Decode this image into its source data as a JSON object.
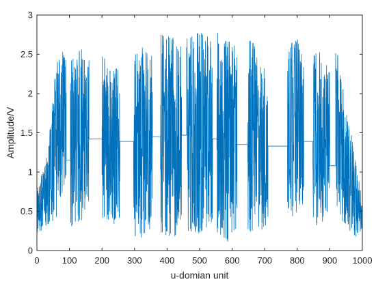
{
  "chart_data": {
    "type": "line",
    "title": "",
    "xlabel": "u-domian unit",
    "ylabel": "Amplitude/V",
    "xlim": [
      0,
      1000
    ],
    "ylim": [
      0,
      3
    ],
    "xticks": [
      0,
      100,
      200,
      300,
      400,
      500,
      600,
      700,
      800,
      900,
      1000
    ],
    "yticks": [
      0,
      0.5,
      1,
      1.5,
      2,
      2.5,
      3
    ],
    "xtick_labels": [
      "0",
      "100",
      "200",
      "300",
      "400",
      "500",
      "600",
      "700",
      "800",
      "900",
      "1000"
    ],
    "ytick_labels": [
      "0",
      "0.5",
      "1",
      "1.5",
      "2",
      "2.5",
      "3"
    ],
    "grid": false,
    "line_color": "#0072BD",
    "series": [
      {
        "segments": [
          {
            "type": "noise",
            "x_range": [
              0,
              90
            ],
            "envelope": [
              [
                0,
                0.2,
                0.8
              ],
              [
                30,
                0.3,
                1.2
              ],
              [
                60,
                0.4,
                2.4
              ],
              [
                90,
                0.9,
                2.6
              ]
            ]
          },
          {
            "type": "flat",
            "x_range": [
              90,
              103
            ],
            "y": 1.15
          },
          {
            "type": "noise",
            "x_range": [
              103,
              160
            ],
            "envelope": [
              [
                103,
                0.3,
                2.5
              ],
              [
                130,
                0.3,
                2.6
              ],
              [
                160,
                0.6,
                2.5
              ]
            ]
          },
          {
            "type": "flat",
            "x_range": [
              160,
              200
            ],
            "y": 1.42
          },
          {
            "type": "noise",
            "x_range": [
              200,
              255
            ],
            "envelope": [
              [
                200,
                0.4,
                2.5
              ],
              [
                230,
                0.3,
                2.3
              ],
              [
                255,
                0.4,
                2.4
              ]
            ]
          },
          {
            "type": "flat",
            "x_range": [
              255,
              297
            ],
            "y": 1.39
          },
          {
            "type": "noise",
            "x_range": [
              297,
              355
            ],
            "envelope": [
              [
                297,
                0.2,
                2.5
              ],
              [
                325,
                0.1,
                2.6
              ],
              [
                355,
                0.3,
                2.5
              ]
            ]
          },
          {
            "type": "flat",
            "x_range": [
              355,
              380
            ],
            "y": 1.45
          },
          {
            "type": "noise",
            "x_range": [
              380,
              445
            ],
            "envelope": [
              [
                380,
                0.2,
                2.8
              ],
              [
                410,
                0.1,
                2.8
              ],
              [
                445,
                0.3,
                2.6
              ]
            ]
          },
          {
            "type": "flat",
            "x_range": [
              445,
              460
            ],
            "y": 1.47
          },
          {
            "type": "noise",
            "x_range": [
              460,
              540
            ],
            "envelope": [
              [
                460,
                0.2,
                2.7
              ],
              [
                500,
                0.2,
                2.8
              ],
              [
                540,
                0.3,
                2.7
              ]
            ]
          },
          {
            "type": "flat",
            "x_range": [
              540,
              553
            ],
            "y": 1.42
          },
          {
            "type": "noise",
            "x_range": [
              553,
              615
            ],
            "envelope": [
              [
                553,
                0.2,
                2.8
              ],
              [
                585,
                0.1,
                2.7
              ],
              [
                615,
                0.3,
                2.6
              ]
            ]
          },
          {
            "type": "flat",
            "x_range": [
              615,
              648
            ],
            "y": 1.35
          },
          {
            "type": "noise",
            "x_range": [
              648,
              710
            ],
            "envelope": [
              [
                648,
                0.2,
                2.8
              ],
              [
                680,
                0.2,
                2.5
              ],
              [
                710,
                0.3,
                2.2
              ]
            ]
          },
          {
            "type": "flat",
            "x_range": [
              710,
              770
            ],
            "y": 1.33
          },
          {
            "type": "noise",
            "x_range": [
              770,
              820
            ],
            "envelope": [
              [
                770,
                0.5,
                2.5
              ],
              [
                795,
                0.4,
                2.8
              ],
              [
                820,
                0.6,
                2.4
              ]
            ]
          },
          {
            "type": "flat",
            "x_range": [
              820,
              848
            ],
            "y": 1.39
          },
          {
            "type": "noise",
            "x_range": [
              848,
              900
            ],
            "envelope": [
              [
                848,
                0.3,
                2.5
              ],
              [
                875,
                0.3,
                2.6
              ],
              [
                900,
                0.5,
                2.3
              ]
            ]
          },
          {
            "type": "flat",
            "x_range": [
              900,
              918
            ],
            "y": 1.08
          },
          {
            "type": "noise",
            "x_range": [
              918,
              1000
            ],
            "envelope": [
              [
                918,
                0.5,
                2.7
              ],
              [
                950,
                0.3,
                1.8
              ],
              [
                980,
                0.15,
                1.2
              ],
              [
                1000,
                0.2,
                0.6
              ]
            ]
          }
        ]
      }
    ]
  }
}
